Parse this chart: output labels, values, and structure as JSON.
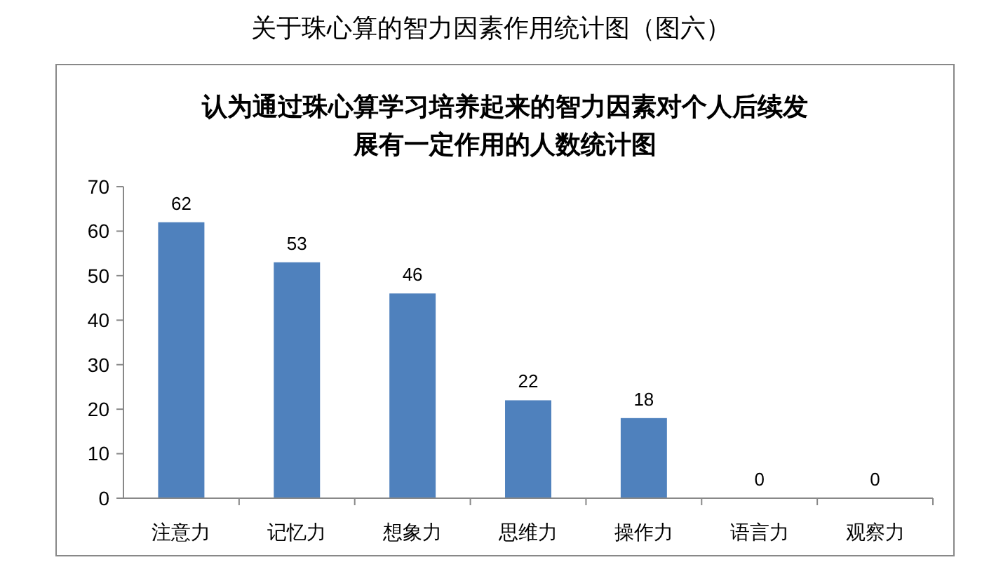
{
  "chart_data": {
    "type": "bar",
    "title": "关于珠心算的智力因素作用统计图（图六）",
    "subtitle": "认为通过珠心算学习培养起来的智力因素对个人后续发展有一定作用的人数统计图",
    "categories": [
      "注意力",
      "记忆力",
      "想象力",
      "思维力",
      "操作力",
      "语言力",
      "观察力"
    ],
    "values": [
      62,
      53,
      46,
      22,
      18,
      0,
      0
    ],
    "color": "#4f81bd",
    "ylim": [
      0,
      70
    ],
    "yticks": [
      0,
      10,
      20,
      30,
      40,
      50,
      60,
      70
    ],
    "grid": false,
    "data_labels": true
  }
}
